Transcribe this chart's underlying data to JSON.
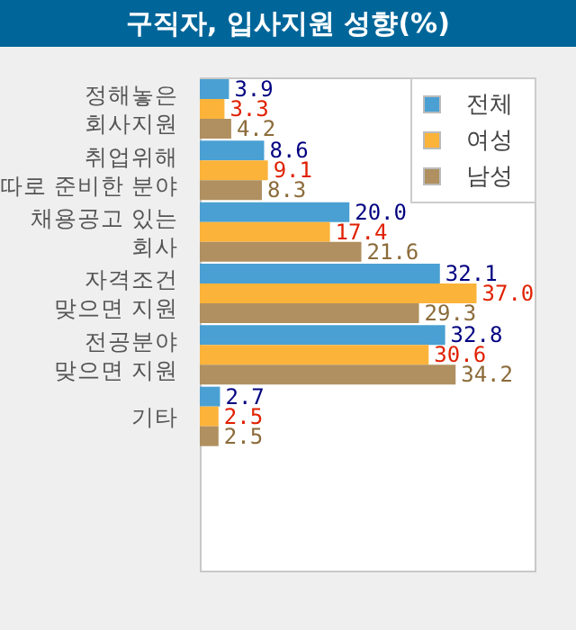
{
  "chart_data": {
    "type": "bar",
    "orientation": "horizontal",
    "title": "구직자, 입사지원 성향(%)",
    "categories": [
      "정해놓은\n회사지원",
      "취업위해\n따로 준비한 분야",
      "채용공고 있는\n회사",
      "자격조건\n맞으면 지원",
      "전공분야\n맞으면 지원",
      "기타"
    ],
    "series": [
      {
        "name": "전체",
        "color": "#4aa0d2",
        "values": [
          3.9,
          8.6,
          20.0,
          32.1,
          32.8,
          2.7
        ],
        "value_labels": [
          "3.9",
          "8.6",
          "20.0",
          "32.1",
          "32.8",
          "2.7"
        ]
      },
      {
        "name": "여성",
        "color": "#fbb33a",
        "values": [
          3.3,
          9.1,
          17.4,
          37.0,
          30.6,
          2.5
        ],
        "value_labels": [
          "3.3",
          "9.1",
          "17.4",
          "37.0",
          "30.6",
          "2.5"
        ]
      },
      {
        "name": "남성",
        "color": "#b09060",
        "values": [
          4.2,
          8.3,
          21.6,
          29.3,
          34.2,
          2.5
        ],
        "value_labels": [
          "4.2",
          "8.3",
          "21.6",
          "29.3",
          "34.2",
          "2.5"
        ]
      }
    ],
    "xlim": [
      0,
      45
    ],
    "tick_labels": "y",
    "legend": "top right",
    "grid": false
  }
}
